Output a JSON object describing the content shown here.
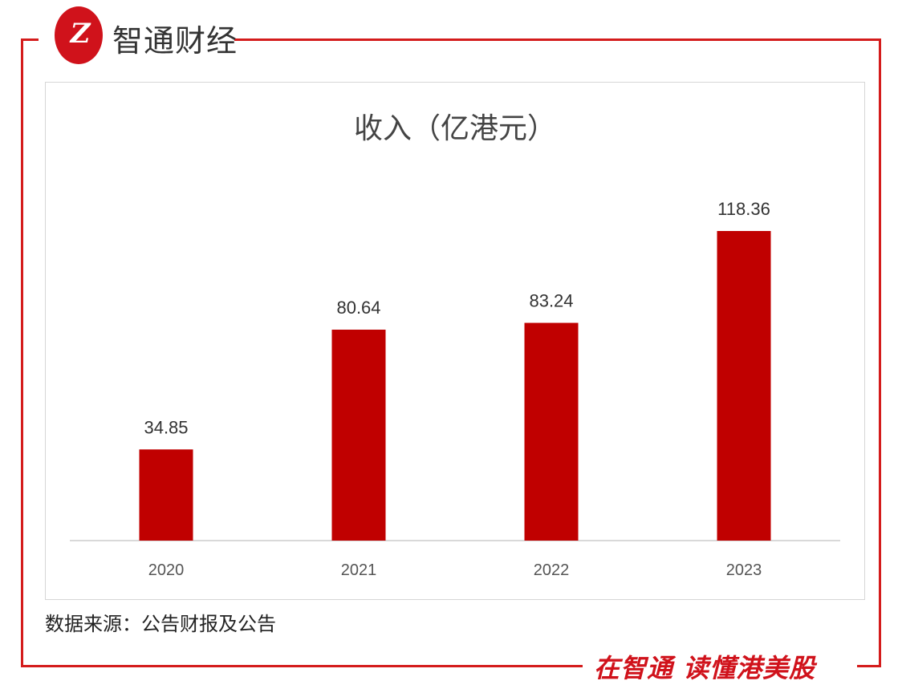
{
  "brand": {
    "logo_text": "Z",
    "name": "智通财经",
    "slogan": "在智通 读懂港美股"
  },
  "source_note": "数据来源：公告财报及公告",
  "colors": {
    "bar": "#c00000",
    "frame": "#d41c1c",
    "axis": "#d9d9d9"
  },
  "chart_data": {
    "type": "bar",
    "title": "收入（亿港元）",
    "categories": [
      "2020",
      "2021",
      "2022",
      "2023"
    ],
    "values": [
      34.85,
      80.64,
      83.24,
      118.36
    ],
    "value_labels": [
      "34.85",
      "80.64",
      "83.24",
      "118.36"
    ],
    "xlabel": "",
    "ylabel": "",
    "ylim": [
      0,
      120
    ],
    "grid": false,
    "legend": "none"
  }
}
